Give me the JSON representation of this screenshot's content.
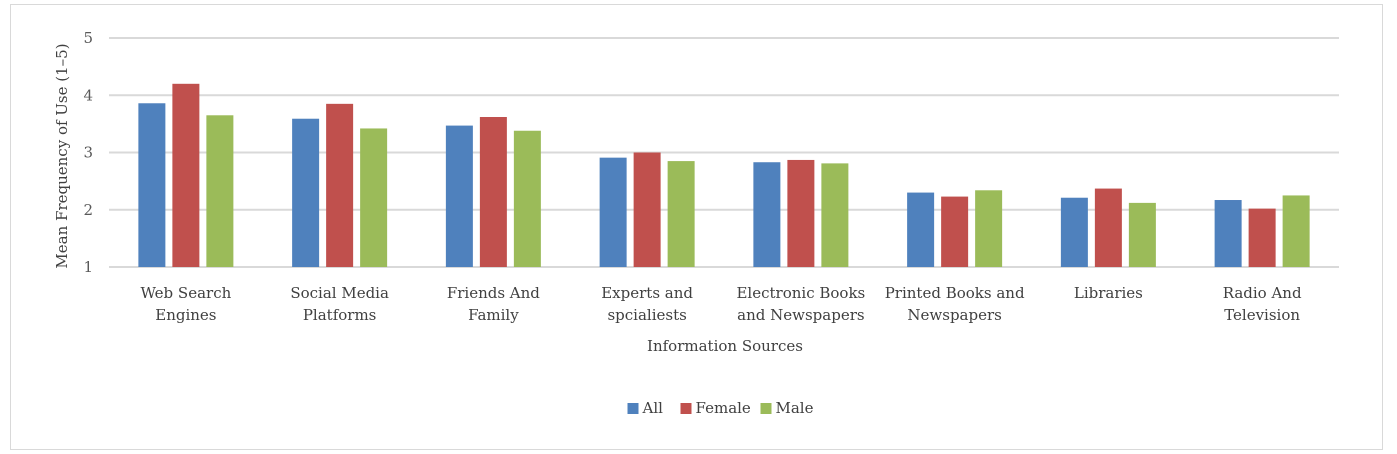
{
  "chart_data": {
    "type": "bar",
    "title": "",
    "xlabel": "Information Sources",
    "ylabel": "Mean Frequency of Use (1–5)",
    "ylim": [
      1,
      5
    ],
    "yticks": [
      1,
      2,
      3,
      4,
      5
    ],
    "grid": true,
    "legend_position": "bottom",
    "categories": [
      [
        "Web Search",
        "Engines"
      ],
      [
        "Social Media",
        "Platforms"
      ],
      [
        "Friends And",
        "Family"
      ],
      [
        "Experts and",
        "spcialiests"
      ],
      [
        "Electronic Books",
        "and Newspapers"
      ],
      [
        "Printed Books and",
        "Newspapers"
      ],
      [
        "Libraries"
      ],
      [
        "Radio And",
        "Television"
      ]
    ],
    "series": [
      {
        "name": "All",
        "color": "#4f81bd",
        "values": [
          3.86,
          3.59,
          3.47,
          2.91,
          2.83,
          2.3,
          2.21,
          2.17
        ]
      },
      {
        "name": "Female",
        "color": "#c0504d",
        "values": [
          4.2,
          3.85,
          3.62,
          3.0,
          2.87,
          2.23,
          2.37,
          2.02
        ]
      },
      {
        "name": "Male",
        "color": "#9bbb59",
        "values": [
          3.65,
          3.42,
          3.38,
          2.85,
          2.81,
          2.34,
          2.12,
          2.25
        ]
      }
    ]
  }
}
